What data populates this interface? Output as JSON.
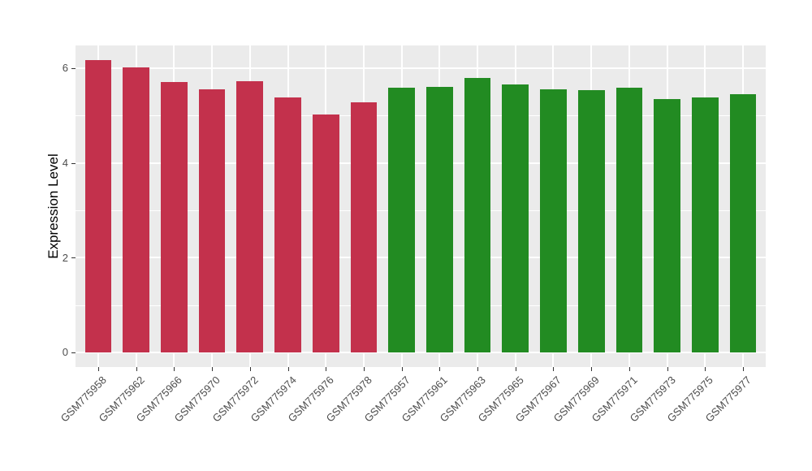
{
  "chart_data": {
    "type": "bar",
    "title": "",
    "xlabel": "",
    "ylabel": "Expression Level",
    "categories": [
      "GSM775958",
      "GSM775962",
      "GSM775966",
      "GSM775970",
      "GSM775972",
      "GSM775974",
      "GSM775976",
      "GSM775978",
      "GSM775957",
      "GSM775961",
      "GSM775963",
      "GSM775965",
      "GSM775967",
      "GSM775969",
      "GSM775971",
      "GSM775973",
      "GSM775975",
      "GSM775977"
    ],
    "values": [
      6.17,
      6.02,
      5.7,
      5.56,
      5.72,
      5.38,
      5.02,
      5.28,
      5.58,
      5.6,
      5.8,
      5.65,
      5.56,
      5.53,
      5.58,
      5.34,
      5.39,
      5.45
    ],
    "bar_groups": [
      "red",
      "red",
      "red",
      "red",
      "red",
      "red",
      "red",
      "red",
      "green",
      "green",
      "green",
      "green",
      "green",
      "green",
      "green",
      "green",
      "green",
      "green"
    ],
    "group_colors": {
      "red": "#C3314C",
      "green": "#228B22"
    },
    "yticks": [
      0,
      2,
      4,
      6
    ],
    "yticks_minor": [
      1,
      3,
      5
    ],
    "ylim": [
      -0.31,
      6.48
    ],
    "x_range": [
      0.4,
      18.6
    ],
    "bar_width_units": 0.7,
    "grid": "horizontal major+minor, vertical at category centers, white on grey panel",
    "legend": "none",
    "panel_bg": "#EBEBEB",
    "grid_color": "#FFFFFF",
    "tick_label_color": "#4D4D4D",
    "axis_title_color": "#000000",
    "background": "#FFFFFF"
  }
}
